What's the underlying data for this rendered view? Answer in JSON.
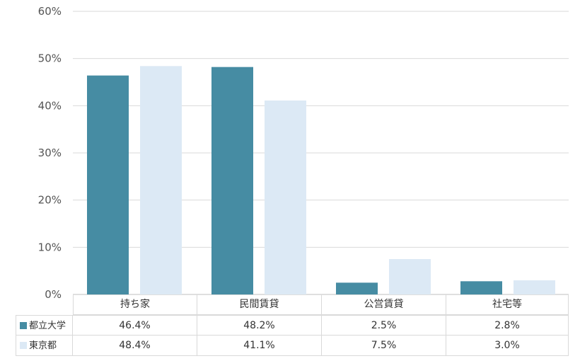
{
  "chart_data": {
    "type": "bar",
    "categories": [
      "持ち家",
      "民間賃貸",
      "公営賃貸",
      "社宅等"
    ],
    "series": [
      {
        "name": "都立大学",
        "values": [
          46.4,
          48.2,
          2.5,
          2.8
        ],
        "labels": [
          "46.4%",
          "48.2%",
          "2.5%",
          "2.8%"
        ],
        "color": "#468ca3"
      },
      {
        "name": "東京都",
        "values": [
          48.4,
          41.1,
          7.5,
          3.0
        ],
        "labels": [
          "48.4%",
          "41.1%",
          "7.5%",
          "3.0%"
        ],
        "color": "#dce9f5"
      }
    ],
    "ylim": [
      0,
      60
    ],
    "yticks": [
      0,
      10,
      20,
      30,
      40,
      50,
      60
    ],
    "ytick_labels": [
      "0%",
      "10%",
      "20%",
      "30%",
      "40%",
      "50%",
      "60%"
    ],
    "grid": true,
    "legend": "data-table"
  },
  "colors": {
    "grid": "#d9d9d9",
    "axis": "#bfbfbf"
  }
}
